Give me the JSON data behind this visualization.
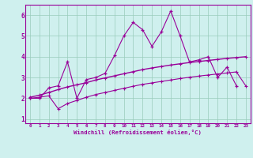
{
  "x": [
    0,
    1,
    2,
    3,
    4,
    5,
    6,
    7,
    8,
    9,
    10,
    11,
    12,
    13,
    14,
    15,
    16,
    17,
    18,
    19,
    20,
    21,
    22,
    23
  ],
  "line1": [
    2.0,
    2.0,
    2.5,
    2.6,
    3.75,
    2.0,
    2.9,
    3.0,
    3.2,
    4.05,
    5.0,
    5.65,
    5.3,
    4.5,
    5.2,
    6.2,
    5.0,
    3.75,
    3.85,
    4.0,
    3.0,
    3.5,
    2.6,
    null
  ],
  "line2": [
    2.05,
    2.15,
    2.28,
    2.42,
    2.55,
    2.65,
    2.75,
    2.88,
    2.98,
    3.08,
    3.18,
    3.28,
    3.38,
    3.46,
    3.53,
    3.6,
    3.66,
    3.72,
    3.77,
    3.82,
    3.87,
    3.92,
    3.96,
    4.0
  ],
  "line3": [
    2.0,
    2.05,
    2.12,
    1.5,
    1.75,
    1.9,
    2.05,
    2.18,
    2.28,
    2.38,
    2.48,
    2.58,
    2.67,
    2.74,
    2.81,
    2.88,
    2.95,
    3.01,
    3.07,
    3.12,
    3.17,
    3.22,
    3.27,
    2.6
  ],
  "color": "#990099",
  "bg_color": "#cff0ee",
  "grid_color": "#99ccbb",
  "xlabel": "Windchill (Refroidissement éolien,°C)",
  "xlim": [
    -0.5,
    23.5
  ],
  "ylim": [
    0.8,
    6.5
  ],
  "yticks": [
    1,
    2,
    3,
    4,
    5,
    6
  ],
  "xticks": [
    0,
    1,
    2,
    3,
    4,
    5,
    6,
    7,
    8,
    9,
    10,
    11,
    12,
    13,
    14,
    15,
    16,
    17,
    18,
    19,
    20,
    21,
    22,
    23
  ]
}
